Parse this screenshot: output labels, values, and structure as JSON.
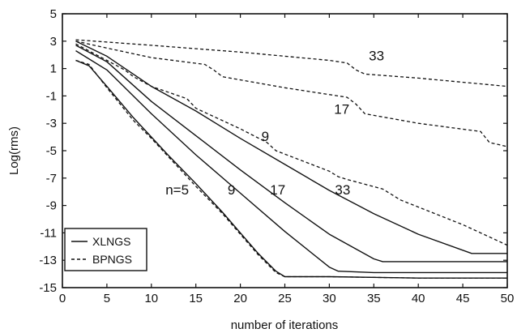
{
  "chart_data": {
    "type": "line",
    "xlabel": "number of iterations",
    "ylabel": "Log(rms)",
    "xlim": [
      0,
      50
    ],
    "ylim": [
      -15,
      5
    ],
    "xticks": [
      0,
      5,
      10,
      15,
      20,
      25,
      30,
      35,
      40,
      45,
      50
    ],
    "yticks": [
      5,
      3,
      1,
      -1,
      -3,
      -5,
      -7,
      -9,
      -11,
      -13,
      -15
    ],
    "grid": false,
    "legend_position": "bottom-left",
    "legend": [
      {
        "label": "XLNGS",
        "style": "solid"
      },
      {
        "label": "BPNGS",
        "style": "dashed"
      }
    ],
    "series": [
      {
        "method": "XLNGS",
        "n": 5,
        "style": "solid",
        "x": [
          1.5,
          3,
          5,
          8,
          10,
          12,
          15,
          18,
          20,
          22,
          24,
          25,
          30,
          40,
          50
        ],
        "y": [
          1.6,
          1.2,
          -0.3,
          -2.6,
          -4.0,
          -5.4,
          -7.4,
          -9.5,
          -11.0,
          -12.5,
          -13.8,
          -14.2,
          -14.2,
          -14.3,
          -14.3
        ]
      },
      {
        "method": "XLNGS",
        "n": 9,
        "style": "solid",
        "x": [
          1.5,
          5,
          10,
          15,
          20,
          25,
          30,
          31,
          35,
          40,
          50
        ],
        "y": [
          2.3,
          0.9,
          -2.3,
          -5.3,
          -8.1,
          -10.9,
          -13.5,
          -13.8,
          -13.9,
          -13.9,
          -13.9
        ]
      },
      {
        "method": "XLNGS",
        "n": 17,
        "style": "solid",
        "x": [
          1.5,
          5,
          10,
          15,
          20,
          25,
          30,
          35,
          36,
          40,
          50
        ],
        "y": [
          2.7,
          1.5,
          -1.4,
          -3.9,
          -6.4,
          -8.8,
          -11.1,
          -12.9,
          -13.1,
          -13.1,
          -13.1
        ]
      },
      {
        "method": "XLNGS",
        "n": 33,
        "style": "solid",
        "x": [
          1.5,
          5,
          10,
          15,
          20,
          25,
          30,
          35,
          40,
          46,
          50
        ],
        "y": [
          3.0,
          1.9,
          -0.3,
          -2.1,
          -4.1,
          -6.0,
          -7.9,
          -9.6,
          -11.1,
          -12.5,
          -12.5
        ]
      },
      {
        "method": "BPNGS",
        "n": 5,
        "style": "dashed",
        "x": [
          1.5,
          3,
          5,
          8,
          10,
          12,
          15,
          18,
          20,
          22,
          24,
          25,
          30,
          40,
          50
        ],
        "y": [
          1.6,
          1.3,
          -0.4,
          -2.8,
          -4.1,
          -5.5,
          -7.6,
          -9.6,
          -11.1,
          -12.6,
          -13.9,
          -14.2,
          -14.2,
          -14.3,
          -14.3
        ]
      },
      {
        "method": "BPNGS",
        "n": 9,
        "style": "dashed",
        "x": [
          1.5,
          5,
          7,
          8,
          10,
          14,
          15,
          20,
          23,
          24,
          30,
          31,
          32,
          36,
          38,
          45,
          50
        ],
        "y": [
          2.8,
          1.6,
          0.9,
          0.4,
          -0.3,
          -1.2,
          -1.9,
          -3.4,
          -4.4,
          -5.0,
          -6.5,
          -6.9,
          -7.1,
          -7.8,
          -8.6,
          -10.4,
          -11.9
        ]
      },
      {
        "method": "BPNGS",
        "n": 17,
        "style": "dashed",
        "x": [
          1.5,
          5,
          10,
          16,
          17,
          18,
          25,
          32,
          33,
          34,
          40,
          47,
          48,
          50
        ],
        "y": [
          3.0,
          2.5,
          1.8,
          1.3,
          0.9,
          0.4,
          -0.4,
          -1.1,
          -1.6,
          -2.3,
          -3.0,
          -3.6,
          -4.4,
          -4.7
        ]
      },
      {
        "method": "BPNGS",
        "n": 33,
        "style": "dashed",
        "x": [
          1.5,
          10,
          20,
          30,
          32,
          33,
          34,
          40,
          50
        ],
        "y": [
          3.1,
          2.7,
          2.2,
          1.6,
          1.4,
          0.9,
          0.6,
          0.3,
          -0.3
        ]
      }
    ],
    "annotations": [
      {
        "text": "33",
        "x": 35.3,
        "y": 1.6
      },
      {
        "text": "17",
        "x": 31.4,
        "y": -2.3
      },
      {
        "text": "9",
        "x": 22.8,
        "y": -4.3
      },
      {
        "text": "n=5",
        "x": 12.9,
        "y": -8.2
      },
      {
        "text": "9",
        "x": 19.0,
        "y": -8.2
      },
      {
        "text": "17",
        "x": 24.2,
        "y": -8.2
      },
      {
        "text": "33",
        "x": 31.5,
        "y": -8.2
      }
    ]
  }
}
